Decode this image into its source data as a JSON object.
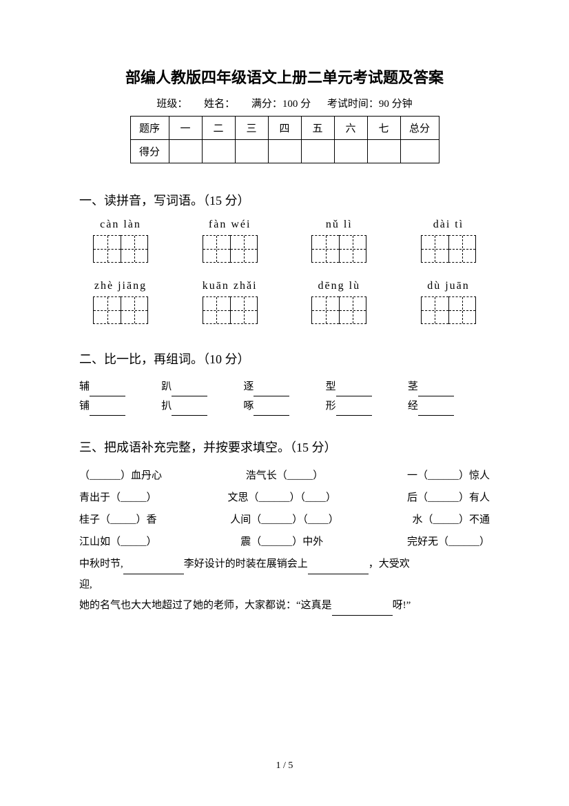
{
  "title": "部编人教版四年级语文上册二单元考试题及答案",
  "info": {
    "class_label": "班级：",
    "name_label": "姓名：",
    "full_score": "满分：100 分",
    "time": "考试时间：90 分钟"
  },
  "score_table": {
    "row1": [
      "题序",
      "一",
      "二",
      "三",
      "四",
      "五",
      "六",
      "七",
      "总分"
    ],
    "row2_label": "得分"
  },
  "s1": {
    "title": "一、读拼音，写词语。（15 分）",
    "row1": [
      "càn  làn",
      "fàn wéi",
      "nǔ  lì",
      "dài  tì"
    ],
    "row2": [
      "zhè  jiāng",
      "kuān zhǎi",
      "dēng lù",
      "dù  juān"
    ]
  },
  "s2": {
    "title": "二、比一比，再组词。（10 分）",
    "r1": [
      "辅",
      "趴",
      "逐",
      "型",
      "茎"
    ],
    "r2": [
      "铺",
      "扒",
      "啄",
      "形",
      "经"
    ]
  },
  "s3": {
    "title": "三、把成语补充完整，并按要求填空。（15 分）",
    "rows": [
      [
        "（______）血丹心",
        "浩气长（_____）",
        "一（______）惊人"
      ],
      [
        "青出于（_____）",
        "文思（______）（____）",
        "后（______）有人"
      ],
      [
        "桂子（_____）香",
        "人间（______）（____）",
        "水（_____）不通"
      ],
      [
        "江山如（_____）",
        "震（______）中外",
        "完好无（______）"
      ]
    ],
    "line1a": "中秋时节,",
    "line1b": "李好设计的时装在展销会上",
    "line1c": "，大受欢",
    "line2": "迎,",
    "line3a": "她的名气也大大地超过了她的老师，大家都说：“这真是",
    "line3b": "呀!”"
  },
  "footer": "1  /  5"
}
